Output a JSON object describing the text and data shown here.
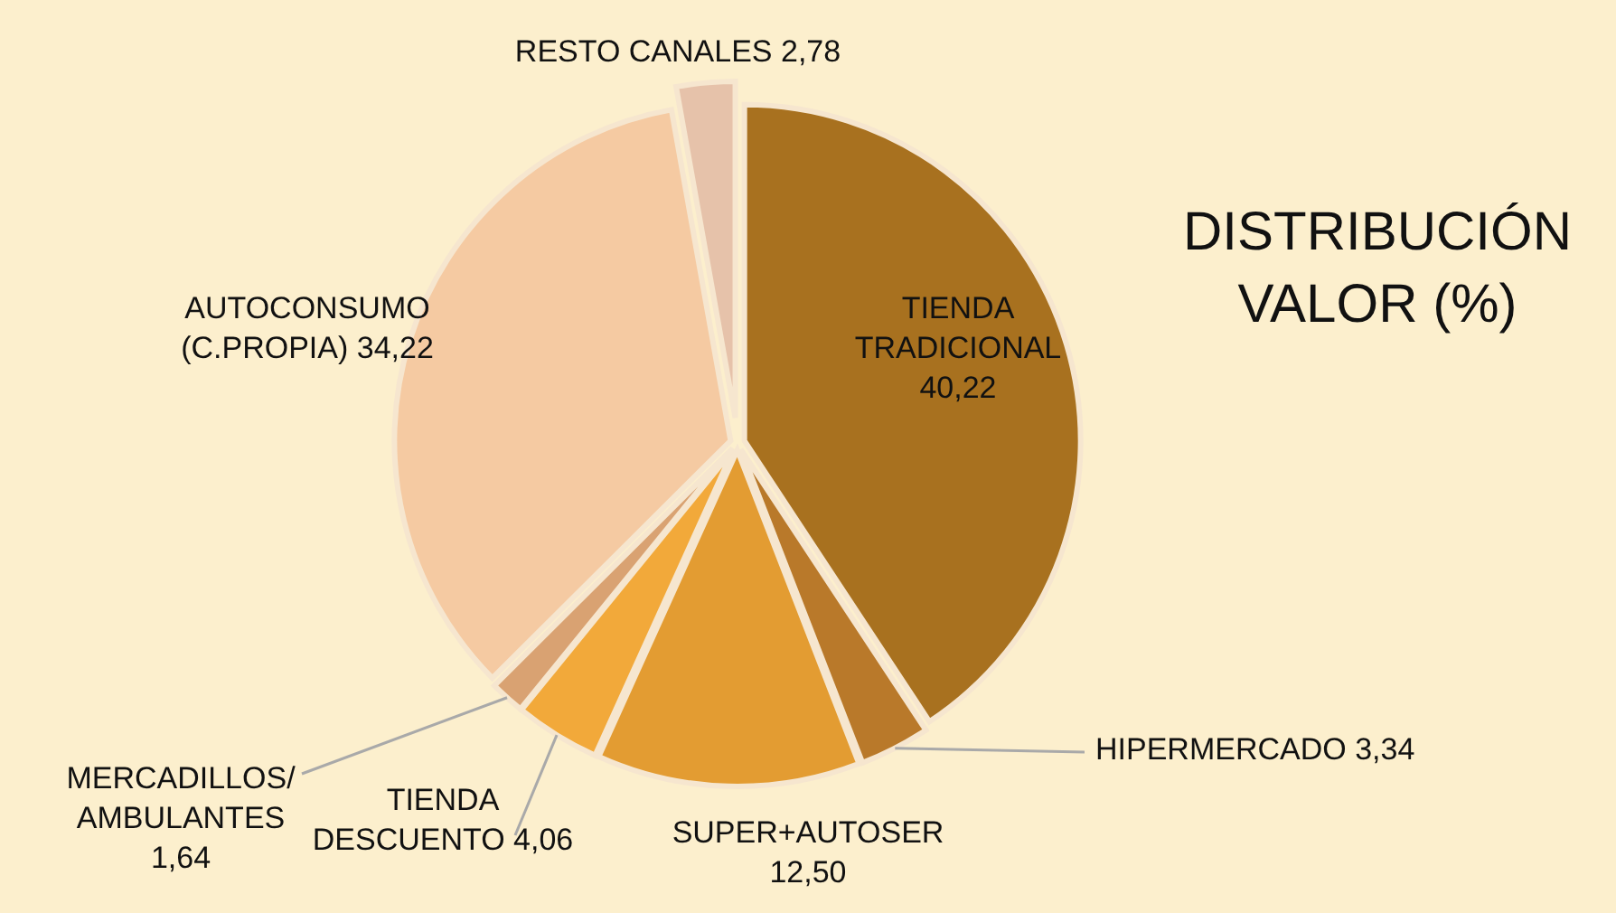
{
  "chart_data": {
    "type": "pie",
    "title": "DISTRIBUCIÓN VALOR (%)",
    "categories": [
      "TIENDA TRADICIONAL",
      "HIPERMERCADO",
      "SUPER+AUTOSER",
      "TIENDA DESCUENTO",
      "MERCADILLOS/ AMBULANTES",
      "AUTOCONSUMO (C.PROPIA)",
      "RESTO CANALES"
    ],
    "values": [
      40.22,
      3.34,
      12.5,
      4.06,
      1.64,
      34.22,
      2.78
    ],
    "value_labels": [
      "40,22",
      "3,34",
      "12,50",
      "4,06",
      "1,64",
      "34,22",
      "2,78"
    ],
    "colors": [
      "#a8711f",
      "#b9792a",
      "#e39c32",
      "#f2a93a",
      "#d9a272",
      "#f5caa2",
      "#e6c2aa"
    ]
  }
}
